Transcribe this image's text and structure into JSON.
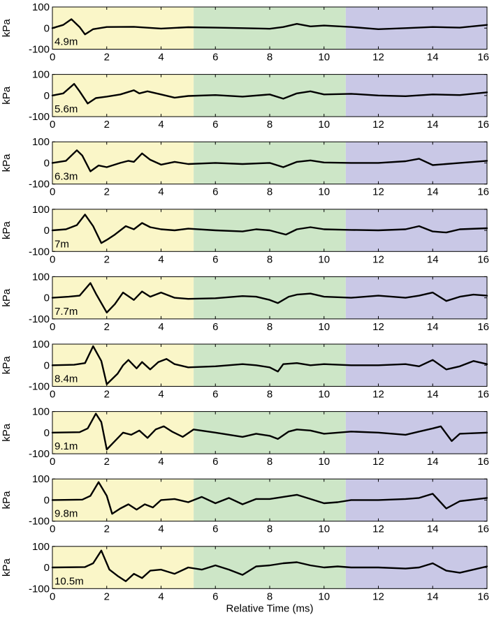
{
  "chart_data": {
    "type": "line",
    "xlabel": "Relative Time (ms)",
    "ylabel": "kPa",
    "xlim": [
      0,
      16
    ],
    "ylim": [
      -100,
      100
    ],
    "x_ticks": [
      "0",
      "2",
      "4",
      "6",
      "8",
      "10",
      "12",
      "14",
      "16"
    ],
    "y_ticks": [
      "100",
      "0",
      "-100"
    ],
    "grid": false,
    "regions": [
      {
        "x_start": 0,
        "x_end": 5.2,
        "color": "#faf6c8"
      },
      {
        "x_start": 5.2,
        "x_end": 10.8,
        "color": "#cde6c7"
      },
      {
        "x_start": 10.8,
        "x_end": 16,
        "color": "#c9c8e6"
      }
    ],
    "line_color": "#000000",
    "panels": [
      {
        "label": "4.9m",
        "x": [
          0,
          0.4,
          0.7,
          1.0,
          1.2,
          1.5,
          2.0,
          3.0,
          4.0,
          5.0,
          6.0,
          7.0,
          8.0,
          8.5,
          9.0,
          9.5,
          10.0,
          11.0,
          12.0,
          13.0,
          14.0,
          15.0,
          16.0
        ],
        "y": [
          0,
          15,
          42,
          5,
          -30,
          -5,
          5,
          6,
          -2,
          4,
          2,
          0,
          -3,
          5,
          20,
          8,
          12,
          5,
          -5,
          0,
          5,
          2,
          15
        ]
      },
      {
        "label": "5.6m",
        "x": [
          0,
          0.4,
          0.8,
          1.0,
          1.3,
          1.6,
          2.0,
          2.5,
          3.0,
          3.2,
          3.5,
          4.0,
          4.5,
          5.0,
          6.0,
          7.0,
          8.0,
          8.5,
          9.0,
          9.5,
          10.0,
          11.0,
          12.0,
          13.0,
          14.0,
          15.0,
          16.0
        ],
        "y": [
          0,
          10,
          55,
          20,
          -38,
          -12,
          -5,
          5,
          25,
          10,
          20,
          5,
          -10,
          -2,
          2,
          -5,
          5,
          -15,
          10,
          20,
          5,
          8,
          0,
          -3,
          5,
          2,
          15
        ]
      },
      {
        "label": "6.3m",
        "x": [
          0,
          0.5,
          0.9,
          1.1,
          1.4,
          1.7,
          2.0,
          2.5,
          2.8,
          3.0,
          3.3,
          3.6,
          4.0,
          4.5,
          5.0,
          6.0,
          7.0,
          8.0,
          8.5,
          9.0,
          9.5,
          10.0,
          11.0,
          12.0,
          13.0,
          13.5,
          14.0,
          15.0,
          16.0
        ],
        "y": [
          0,
          10,
          60,
          35,
          -40,
          -12,
          -20,
          0,
          10,
          5,
          45,
          15,
          -8,
          5,
          -5,
          0,
          -5,
          0,
          -20,
          5,
          12,
          2,
          0,
          0,
          8,
          20,
          -10,
          0,
          10
        ]
      },
      {
        "label": "7m",
        "x": [
          0,
          0.5,
          0.9,
          1.2,
          1.5,
          1.8,
          2.0,
          2.3,
          2.7,
          3.0,
          3.3,
          3.6,
          4.0,
          4.5,
          5.0,
          6.0,
          7.0,
          7.5,
          8.0,
          8.3,
          8.6,
          9.0,
          9.5,
          10.0,
          11.0,
          12.0,
          13.0,
          13.5,
          14.0,
          14.5,
          15.0,
          16.0
        ],
        "y": [
          0,
          5,
          25,
          75,
          20,
          -60,
          -45,
          -20,
          20,
          5,
          35,
          15,
          5,
          0,
          8,
          0,
          -5,
          5,
          0,
          -10,
          -20,
          5,
          15,
          5,
          2,
          0,
          5,
          20,
          -5,
          -10,
          5,
          10
        ]
      },
      {
        "label": "7.7m",
        "x": [
          0,
          0.6,
          1.0,
          1.4,
          1.6,
          2.0,
          2.3,
          2.6,
          3.0,
          3.3,
          3.6,
          4.0,
          4.5,
          5.0,
          6.0,
          7.0,
          7.5,
          8.0,
          8.3,
          8.7,
          9.0,
          9.5,
          10.0,
          11.0,
          12.0,
          13.0,
          13.5,
          14.0,
          14.5,
          15.0,
          15.5,
          16.0
        ],
        "y": [
          0,
          5,
          10,
          70,
          20,
          -70,
          -30,
          25,
          -10,
          30,
          5,
          25,
          0,
          -5,
          -2,
          8,
          5,
          -10,
          -25,
          5,
          15,
          20,
          5,
          0,
          10,
          0,
          10,
          25,
          -15,
          5,
          15,
          10
        ]
      },
      {
        "label": "8.4m",
        "x": [
          0,
          0.8,
          1.2,
          1.5,
          1.8,
          2.0,
          2.4,
          2.6,
          2.8,
          3.1,
          3.3,
          3.6,
          3.9,
          4.2,
          4.5,
          5.0,
          6.0,
          7.0,
          7.5,
          8.0,
          8.3,
          8.5,
          9.0,
          9.5,
          10.0,
          11.0,
          12.0,
          13.0,
          13.5,
          14.0,
          14.5,
          15.0,
          15.5,
          16.0
        ],
        "y": [
          0,
          2,
          10,
          90,
          20,
          -90,
          -40,
          0,
          25,
          -15,
          15,
          -20,
          15,
          30,
          5,
          -10,
          -5,
          5,
          0,
          -10,
          -30,
          5,
          10,
          0,
          5,
          0,
          0,
          5,
          -5,
          25,
          -20,
          -5,
          20,
          5
        ]
      },
      {
        "label": "9.1m",
        "x": [
          0,
          1.0,
          1.3,
          1.6,
          1.8,
          2.0,
          2.3,
          2.6,
          2.9,
          3.2,
          3.5,
          3.8,
          4.1,
          4.4,
          4.8,
          5.2,
          6.0,
          7.0,
          7.5,
          8.0,
          8.3,
          8.7,
          9.0,
          9.5,
          10.0,
          11.0,
          12.0,
          13.0,
          13.5,
          14.0,
          14.3,
          14.7,
          15.0,
          16.0
        ],
        "y": [
          0,
          2,
          20,
          90,
          50,
          -80,
          -40,
          0,
          -10,
          10,
          -25,
          15,
          30,
          5,
          -20,
          15,
          0,
          -20,
          -5,
          -15,
          -30,
          5,
          15,
          10,
          -5,
          5,
          0,
          -10,
          5,
          20,
          30,
          -40,
          -5,
          0
        ]
      },
      {
        "label": "9.8m",
        "x": [
          0,
          1.1,
          1.4,
          1.7,
          2.0,
          2.2,
          2.5,
          2.8,
          3.1,
          3.4,
          3.7,
          4.0,
          4.5,
          5.0,
          5.5,
          6.0,
          6.5,
          7.0,
          7.5,
          8.0,
          8.5,
          9.0,
          9.5,
          10.0,
          10.5,
          11.0,
          12.0,
          13.0,
          13.5,
          14.0,
          14.5,
          15.0,
          16.0
        ],
        "y": [
          0,
          2,
          20,
          85,
          20,
          -65,
          -40,
          -20,
          -45,
          -20,
          -35,
          0,
          5,
          -10,
          15,
          -15,
          10,
          -20,
          5,
          5,
          15,
          25,
          5,
          -15,
          -10,
          0,
          0,
          5,
          10,
          30,
          -40,
          -5,
          10
        ]
      },
      {
        "label": "10.5m",
        "x": [
          0,
          1.2,
          1.5,
          1.8,
          2.1,
          2.4,
          2.7,
          3.0,
          3.3,
          3.6,
          4.0,
          4.5,
          5.0,
          5.5,
          6.0,
          6.5,
          7.0,
          7.5,
          8.0,
          8.5,
          9.0,
          9.5,
          10.0,
          10.5,
          11.0,
          12.0,
          13.0,
          13.5,
          14.0,
          14.5,
          15.0,
          15.5,
          16.0
        ],
        "y": [
          0,
          2,
          20,
          80,
          -10,
          -40,
          -65,
          -30,
          -50,
          -15,
          -10,
          -30,
          0,
          -10,
          10,
          -10,
          -35,
          5,
          10,
          20,
          25,
          10,
          0,
          5,
          0,
          0,
          -5,
          0,
          20,
          -15,
          -25,
          -10,
          5
        ]
      }
    ]
  }
}
